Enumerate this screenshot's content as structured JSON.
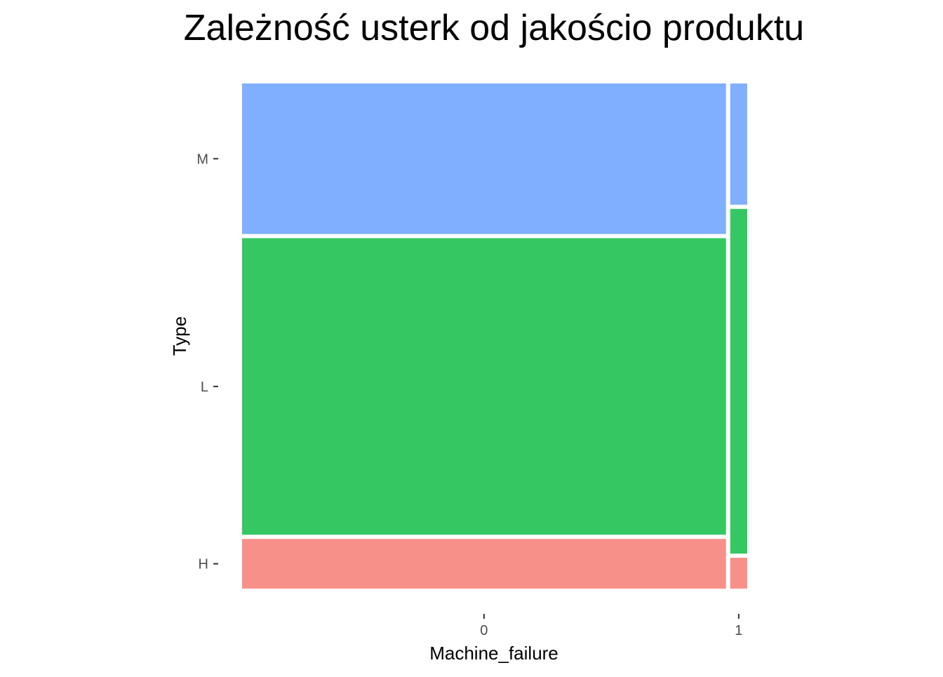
{
  "chart_data": {
    "type": "mosaic",
    "title": "Zależność usterk od jakościo produktu",
    "xlabel": "Machine_failure",
    "ylabel": "Type",
    "x_categories": [
      "0",
      "1"
    ],
    "y_categories": [
      "H",
      "L",
      "M"
    ],
    "x_proportions": [
      0.966,
      0.034
    ],
    "cells": [
      {
        "x": "0",
        "y": "H",
        "proportion": 0.1
      },
      {
        "x": "0",
        "y": "L",
        "proportion": 0.597
      },
      {
        "x": "0",
        "y": "M",
        "proportion": 0.303
      },
      {
        "x": "1",
        "y": "H",
        "proportion": 0.062
      },
      {
        "x": "1",
        "y": "L",
        "proportion": 0.694
      },
      {
        "x": "1",
        "y": "M",
        "proportion": 0.244
      }
    ],
    "colors": {
      "H": "#F8908A",
      "L": "#35C862",
      "M": "#80AFFF"
    },
    "grid": false,
    "legend": "none"
  }
}
